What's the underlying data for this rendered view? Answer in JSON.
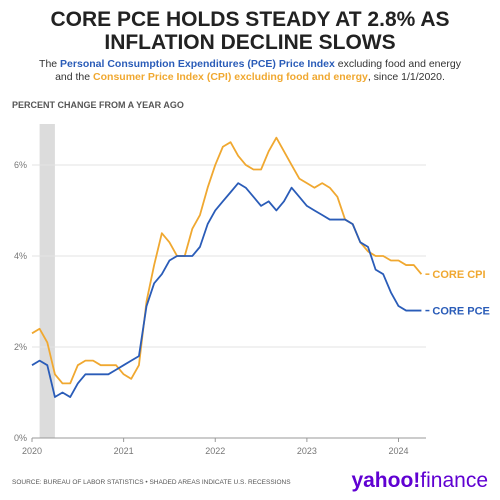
{
  "chart_data": {
    "type": "line",
    "title": [
      "CORE PCE HOLDS STEADY AT 2.8% AS",
      "INFLATION DECLINE SLOWS"
    ],
    "subtitle": [
      {
        "text": "The ",
        "color": "#333333",
        "bold": false
      },
      {
        "text": "Personal Consumption Expenditures (PCE) Price Index",
        "color": "#2a5cb8",
        "bold": true
      },
      {
        "text": " excluding food and energy and the ",
        "color": "#333333",
        "bold": false
      },
      {
        "text": "Consumer Price Index (CPI) excluding food and energy",
        "color": "#f0a830",
        "bold": true
      },
      {
        "text": ", since 1/1/2020.",
        "color": "#333333",
        "bold": false
      }
    ],
    "y_label": "PERCENT CHANGE FROM A YEAR AGO",
    "source": "SOURCE: BUREAU OF LABOR STATISTICS • SHADED AREAS INDICATE U.S. RECESSIONS",
    "logo": [
      "yahoo!",
      "finance"
    ],
    "recessions": [
      [
        2020.083,
        2020.25
      ]
    ],
    "recession_color": "#dcdcdc",
    "grid": true,
    "xlim": [
      2020,
      2024.3
    ],
    "xticks": [
      2020,
      2021,
      2022,
      2023,
      2024
    ],
    "ylim": [
      0,
      6.9
    ],
    "yticks": [
      {
        "value": 0,
        "label": "0%"
      },
      {
        "value": 2,
        "label": "2%"
      },
      {
        "value": 4,
        "label": "4%"
      },
      {
        "value": 6,
        "label": "6%"
      }
    ],
    "x": [
      2020,
      2020.083,
      2020.167,
      2020.25,
      2020.333,
      2020.417,
      2020.5,
      2020.583,
      2020.667,
      2020.75,
      2020.833,
      2020.917,
      2021,
      2021.083,
      2021.167,
      2021.25,
      2021.333,
      2021.417,
      2021.5,
      2021.583,
      2021.667,
      2021.75,
      2021.833,
      2021.917,
      2022,
      2022.083,
      2022.167,
      2022.25,
      2022.333,
      2022.417,
      2022.5,
      2022.583,
      2022.667,
      2022.75,
      2022.833,
      2022.917,
      2023,
      2023.083,
      2023.167,
      2023.25,
      2023.333,
      2023.417,
      2023.5,
      2023.583,
      2023.667,
      2023.75,
      2023.833,
      2023.917,
      2024,
      2024.083,
      2024.167,
      2024.25
    ],
    "series": [
      {
        "name": "CORE CPI",
        "color": "#f0a830",
        "values": [
          2.3,
          2.4,
          2.1,
          1.4,
          1.2,
          1.2,
          1.6,
          1.7,
          1.7,
          1.6,
          1.6,
          1.6,
          1.4,
          1.3,
          1.6,
          3.0,
          3.8,
          4.5,
          4.3,
          4.0,
          4.0,
          4.6,
          4.9,
          5.5,
          6.0,
          6.4,
          6.5,
          6.2,
          6.0,
          5.9,
          5.9,
          6.3,
          6.6,
          6.3,
          6.0,
          5.7,
          5.6,
          5.5,
          5.6,
          5.5,
          5.3,
          4.8,
          4.7,
          4.3,
          4.1,
          4.0,
          4.0,
          3.9,
          3.9,
          3.8,
          3.8,
          3.6
        ]
      },
      {
        "name": "CORE PCE",
        "color": "#2a5cb8",
        "values": [
          1.6,
          1.7,
          1.6,
          0.9,
          1.0,
          0.9,
          1.2,
          1.4,
          1.4,
          1.4,
          1.4,
          1.5,
          1.6,
          1.7,
          1.8,
          2.9,
          3.4,
          3.6,
          3.9,
          4.0,
          4.0,
          4.0,
          4.2,
          4.7,
          5.0,
          5.2,
          5.4,
          5.6,
          5.5,
          5.3,
          5.1,
          5.2,
          5.0,
          5.2,
          5.5,
          5.3,
          5.1,
          5.0,
          4.9,
          4.8,
          4.8,
          4.8,
          4.7,
          4.3,
          4.2,
          3.7,
          3.6,
          3.2,
          2.9,
          2.8,
          2.8,
          2.8
        ]
      }
    ]
  }
}
